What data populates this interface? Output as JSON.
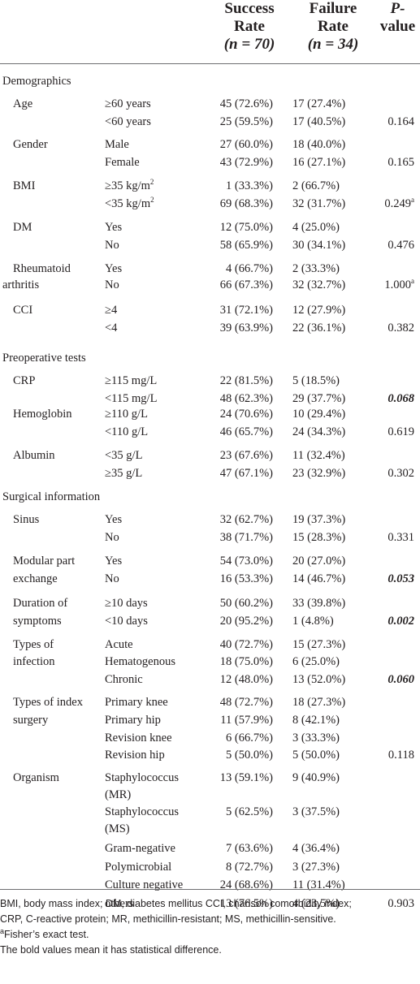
{
  "header": {
    "success_line1": "Success",
    "success_line2": "Rate",
    "success_n": "(n = 70)",
    "failure_line1": "Failure",
    "failure_line2": "Rate",
    "failure_n": "(n = 34)",
    "pvalue_line1": "P-",
    "pvalue_line2": "value"
  },
  "sections": [
    "Demographics",
    "Preoperative tests",
    "Surgical information"
  ],
  "variables": [
    "Age",
    "Gender",
    "BMI",
    "DM",
    "Rheumatoid",
    "arthritis",
    "CCI",
    "CRP",
    "Hemoglobin",
    "Albumin",
    "Sinus",
    "Modular part",
    "exchange",
    "Duration of",
    "symptoms",
    "Types of",
    "infection",
    "Types of index",
    "surgery",
    "Organism"
  ],
  "rows": [
    {
      "cat": "≥60 years",
      "suc": "45 (72.6%)",
      "fail": "17 (27.4%)",
      "p": ""
    },
    {
      "cat": "<60 years",
      "suc": "25 (59.5%)",
      "fail": "17 (40.5%)",
      "p": "0.164"
    },
    {
      "cat": "Male",
      "suc": "27 (60.0%)",
      "fail": "18 (40.0%)",
      "p": ""
    },
    {
      "cat": "Female",
      "suc": "43 (72.9%)",
      "fail": "16 (27.1%)",
      "p": "0.165"
    },
    {
      "cat": "≥35 kg/m",
      "cat_sup": "2",
      "suc": "1 (33.3%)",
      "fail": "2 (66.7%)",
      "p": ""
    },
    {
      "cat": "<35 kg/m",
      "cat_sup": "2",
      "suc": "69 (68.3%)",
      "fail": "32 (31.7%)",
      "p": "0.249",
      "p_sup": "a"
    },
    {
      "cat": "Yes",
      "suc": "12 (75.0%)",
      "fail": "4 (25.0%)",
      "p": ""
    },
    {
      "cat": "No",
      "suc": "58 (65.9%)",
      "fail": "30 (34.1%)",
      "p": "0.476"
    },
    {
      "cat": "Yes",
      "suc": "4 (66.7%)",
      "fail": "2 (33.3%)",
      "p": ""
    },
    {
      "cat": "No",
      "suc": "66 (67.3%)",
      "fail": "32 (32.7%)",
      "p": "1.000",
      "p_sup": "a"
    },
    {
      "cat": "≥4",
      "suc": "31 (72.1%)",
      "fail": "12 (27.9%)",
      "p": ""
    },
    {
      "cat": "<4",
      "suc": "39 (63.9%)",
      "fail": "22 (36.1%)",
      "p": "0.382"
    },
    {
      "cat": "≥115 mg/L",
      "suc": "22 (81.5%)",
      "fail": "5 (18.5%)",
      "p": ""
    },
    {
      "cat": "<115 mg/L",
      "suc": "48 (62.3%)",
      "fail": "29 (37.7%)",
      "p": "0.068",
      "sig": true
    },
    {
      "cat": "≥110 g/L",
      "suc": "24 (70.6%)",
      "fail": "10 (29.4%)",
      "p": ""
    },
    {
      "cat": "<110 g/L",
      "suc": "46 (65.7%)",
      "fail": "24 (34.3%)",
      "p": "0.619"
    },
    {
      "cat": "<35 g/L",
      "suc": "23 (67.6%)",
      "fail": "11 (32.4%)",
      "p": ""
    },
    {
      "cat": "≥35 g/L",
      "suc": "47 (67.1%)",
      "fail": "23 (32.9%)",
      "p": "0.302"
    },
    {
      "cat": "Yes",
      "suc": "32 (62.7%)",
      "fail": "19 (37.3%)",
      "p": ""
    },
    {
      "cat": "No",
      "suc": "38 (71.7%)",
      "fail": "15 (28.3%)",
      "p": "0.331"
    },
    {
      "cat": "Yes",
      "suc": "54 (73.0%)",
      "fail": "20 (27.0%)",
      "p": ""
    },
    {
      "cat": "No",
      "suc": "16 (53.3%)",
      "fail": "14 (46.7%)",
      "p": "0.053",
      "sig": true
    },
    {
      "cat": "≥10 days",
      "suc": "50 (60.2%)",
      "fail": "33 (39.8%)",
      "p": ""
    },
    {
      "cat": "<10 days",
      "suc": "20 (95.2%)",
      "fail": "1 (4.8%)",
      "p": "0.002",
      "sig": true
    },
    {
      "cat": "Acute",
      "suc": "40 (72.7%)",
      "fail": "15 (27.3%)",
      "p": ""
    },
    {
      "cat": "Hematogenous",
      "suc": "18 (75.0%)",
      "fail": "6 (25.0%)",
      "p": ""
    },
    {
      "cat": "Chronic",
      "suc": "12 (48.0%)",
      "fail": "13 (52.0%)",
      "p": "0.060",
      "sig": true
    },
    {
      "cat": "Primary knee",
      "suc": "48 (72.7%)",
      "fail": "18 (27.3%)",
      "p": ""
    },
    {
      "cat": "Primary hip",
      "suc": "11 (57.9%)",
      "fail": "8 (42.1%)",
      "p": ""
    },
    {
      "cat": "Revision knee",
      "suc": "6 (66.7%)",
      "fail": "3 (33.3%)",
      "p": ""
    },
    {
      "cat": "Revision hip",
      "suc": "5 (50.0%)",
      "fail": "5 (50.0%)",
      "p": "0.118"
    },
    {
      "cat": "Staphylococcus",
      "suc": "13 (59.1%)",
      "fail": "9 (40.9%)",
      "p": ""
    },
    {
      "cat": "(MR)",
      "suc": "",
      "fail": "",
      "p": ""
    },
    {
      "cat": "Staphylococcus",
      "suc": "5 (62.5%)",
      "fail": "3 (37.5%)",
      "p": ""
    },
    {
      "cat": "(MS)",
      "suc": "",
      "fail": "",
      "p": ""
    },
    {
      "cat": "Gram-negative",
      "suc": "7 (63.6%)",
      "fail": "4 (36.4%)",
      "p": ""
    },
    {
      "cat": "Polymicrobial",
      "suc": "8 (72.7%)",
      "fail": "3 (27.3%)",
      "p": ""
    },
    {
      "cat": "Culture negative",
      "suc": "24 (68.6%)",
      "fail": "11 (31.4%)",
      "p": ""
    },
    {
      "cat": "others",
      "suc": "13 (76.5%)",
      "fail": "4 (23.5%)",
      "p": "0.903"
    }
  ],
  "footnotes": {
    "abbrev1": "BMI, body mass index; DM, diabetes mellitus CCI, charlson comorbidity index;",
    "abbrev2": "CRP, C-reactive protein; MR, methicillin-resistant; MS, methicillin-sensitive.",
    "fisher_mark": "a",
    "fisher": "Fisher’s exact test.",
    "bold": "The bold values mean it has statistical difference."
  }
}
